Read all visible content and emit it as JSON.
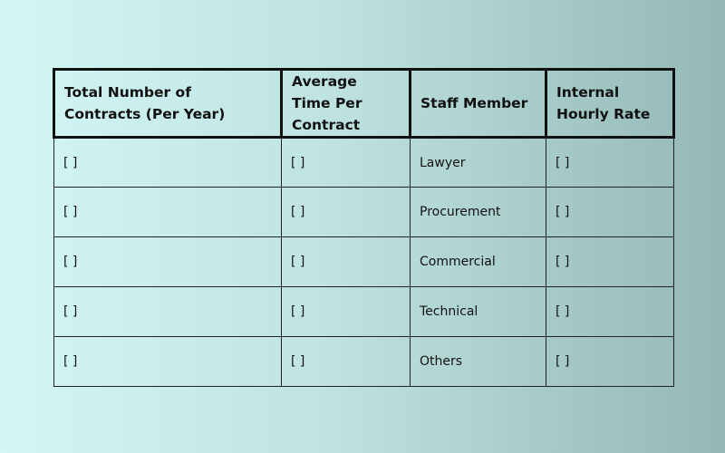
{
  "table": {
    "headers": [
      "Total Number of Contracts (Per Year)",
      "Average Time Per Contract",
      "Staff Member",
      "Internal Hourly Rate"
    ],
    "rows": [
      [
        "[ ]",
        "[ ]",
        "Lawyer",
        "[ ]"
      ],
      [
        "[ ]",
        "[ ]",
        "Procurement",
        "[ ]"
      ],
      [
        "[ ]",
        "[ ]",
        "Commercial",
        "[ ]"
      ],
      [
        "[ ]",
        "[ ]",
        "Technical",
        "[ ]"
      ],
      [
        "[ ]",
        "[ ]",
        "Others",
        "[ ]"
      ]
    ]
  }
}
